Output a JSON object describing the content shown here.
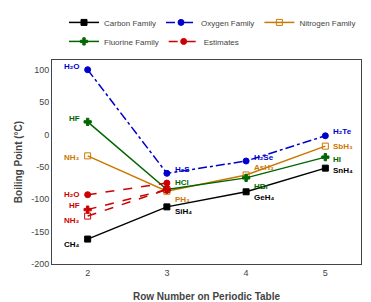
{
  "chart_data": {
    "type": "line",
    "xlabel": "Row Number on Periodic Table",
    "ylabel": "Boiling Point (°C)",
    "xlim": [
      1.55,
      5.45
    ],
    "ylim": [
      -200,
      115
    ],
    "xticks": [
      2,
      3,
      4,
      5
    ],
    "yticks": [
      -200,
      -150,
      -100,
      -50,
      0,
      50,
      100
    ],
    "grid": false,
    "legend": "upper right",
    "series": [
      {
        "name": "Carbon Family",
        "color": "black",
        "marker": "square",
        "line_style": "solid",
        "x": [
          2,
          3,
          4,
          5
        ],
        "values": [
          -161.5,
          -111.8,
          -88.5,
          -52
        ]
      },
      {
        "name": "Oxygen Family",
        "color": "#0000cc",
        "marker": "circle",
        "line_style": "dashdot",
        "x": [
          2,
          3,
          4,
          5
        ],
        "values": [
          100,
          -60,
          -41,
          -2
        ]
      },
      {
        "name": "Nitrogen Family",
        "color": "#cc7700",
        "marker": "square-open",
        "line_style": "solid",
        "x": [
          2,
          3,
          4,
          5
        ],
        "values": [
          -33,
          -87.7,
          -62.5,
          -18
        ]
      },
      {
        "name": "Fluorine Family",
        "color": "#006600",
        "marker": "plus",
        "line_style": "solid",
        "x": [
          2,
          3,
          4,
          5
        ],
        "values": [
          19.5,
          -85,
          -67,
          -35
        ]
      },
      {
        "name": "Estimates",
        "color": "#cc0000",
        "marker": "circle",
        "line_style": "dashed",
        "x": [
          2,
          3
        ],
        "values": [
          -93,
          -75
        ]
      },
      {
        "name": "Estimates",
        "color": "#cc0000",
        "marker": "plus",
        "line_style": "dashed",
        "x": [
          2,
          3
        ],
        "values": [
          -116,
          -85
        ]
      },
      {
        "name": "Estimates",
        "color": "#cc0000",
        "marker": "square-open",
        "line_style": "dashed",
        "x": [
          2,
          3
        ],
        "values": [
          -126,
          -85
        ]
      }
    ],
    "annotations": [
      {
        "text": "CH₄",
        "x": 2,
        "y": -161.5,
        "color": "black"
      },
      {
        "text": "SiH₄",
        "x": 3,
        "y": -111.8,
        "color": "black"
      },
      {
        "text": "GeH₄",
        "x": 4,
        "y": -88.5,
        "color": "black"
      },
      {
        "text": "SnH₄",
        "x": 5,
        "y": -52,
        "color": "black"
      },
      {
        "text": "H₂O",
        "x": 2,
        "y": 100,
        "color": "#0000cc"
      },
      {
        "text": "H₂S",
        "x": 3,
        "y": -60,
        "color": "#0000cc"
      },
      {
        "text": "H₂Se",
        "x": 4,
        "y": -41,
        "color": "#0000cc"
      },
      {
        "text": "H₂Te",
        "x": 5,
        "y": -2,
        "color": "#0000cc"
      },
      {
        "text": "NH₃",
        "x": 2,
        "y": -33,
        "color": "#cc7700"
      },
      {
        "text": "PH₃",
        "x": 3,
        "y": -87.7,
        "color": "#cc7700"
      },
      {
        "text": "AsH₃",
        "x": 4,
        "y": -62.5,
        "color": "#cc7700"
      },
      {
        "text": "SbH₃",
        "x": 5,
        "y": -18,
        "color": "#cc7700"
      },
      {
        "text": "HF",
        "x": 2,
        "y": 19.5,
        "color": "#006600"
      },
      {
        "text": "HCl",
        "x": 3,
        "y": -85,
        "color": "#006600"
      },
      {
        "text": "HBr",
        "x": 4,
        "y": -67,
        "color": "#006600"
      },
      {
        "text": "HI",
        "x": 5,
        "y": -35,
        "color": "#006600"
      },
      {
        "text": "H₂O",
        "x": 2,
        "y": -93,
        "color": "#cc0000"
      },
      {
        "text": "HF",
        "x": 2,
        "y": -116,
        "color": "#cc0000"
      },
      {
        "text": "NH₃",
        "x": 2,
        "y": -126,
        "color": "#cc0000"
      }
    ]
  }
}
